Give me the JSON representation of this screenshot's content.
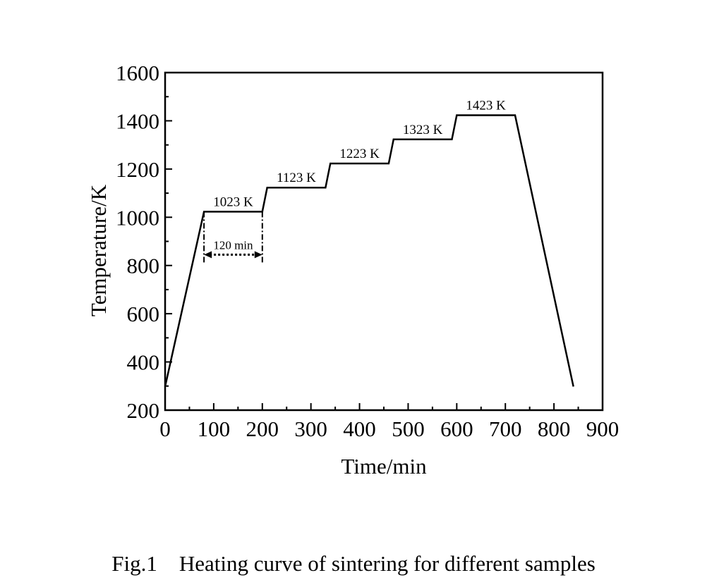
{
  "caption": "Fig.1    Heating curve of sintering for different samples",
  "chart_data": {
    "type": "line",
    "title": "",
    "xlabel": "Time/min",
    "ylabel": "Temperature/K",
    "xlim": [
      0,
      900
    ],
    "ylim": [
      200,
      1600
    ],
    "xticks": [
      0,
      100,
      200,
      300,
      400,
      500,
      600,
      700,
      800,
      900
    ],
    "yticks": [
      200,
      400,
      600,
      800,
      1000,
      1200,
      1400,
      1600
    ],
    "grid": false,
    "legend": "none",
    "line_color": "#000000",
    "series": [
      {
        "x": [
          0,
          80,
          200,
          210,
          330,
          340,
          460,
          470,
          590,
          600,
          720,
          840
        ],
        "y": [
          298,
          1023,
          1023,
          1123,
          1123,
          1223,
          1223,
          1323,
          1323,
          1423,
          1423,
          298
        ]
      }
    ],
    "annotations": [
      {
        "text": "1023 K",
        "x": 140,
        "y": 1023
      },
      {
        "text": "1123 K",
        "x": 270,
        "y": 1123
      },
      {
        "text": "1223 K",
        "x": 400,
        "y": 1223
      },
      {
        "text": "1323 K",
        "x": 530,
        "y": 1323
      },
      {
        "text": "1423 K",
        "x": 660,
        "y": 1423
      }
    ],
    "duration_marker": {
      "text": "120 min",
      "x_start": 80,
      "x_end": 200,
      "y": 845
    }
  }
}
